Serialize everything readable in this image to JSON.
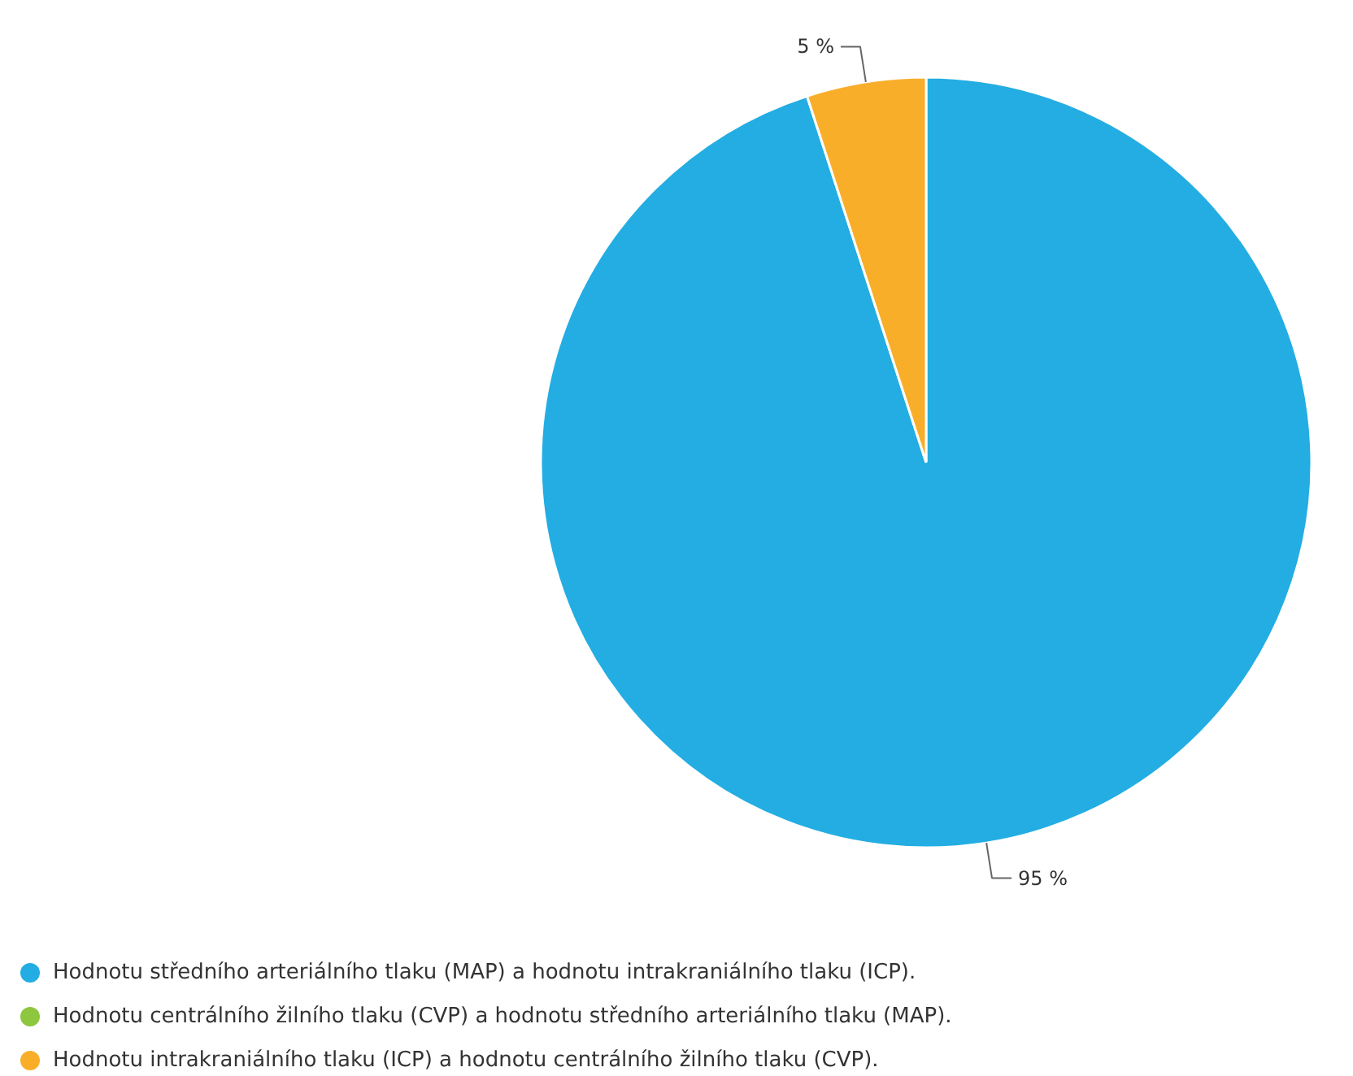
{
  "chart_data": {
    "type": "pie",
    "categories": [
      "Hodnotu středního arteriálního tlaku (MAP) a hodnotu intrakraniálního tlaku (ICP).",
      "Hodnotu centrálního žilního tlaku (CVP) a hodnotu středního arteriálního tlaku (MAP).",
      "Hodnotu intrakraniálního tlaku (ICP) a hodnotu centrálního žilního tlaku (CVP)."
    ],
    "values": [
      95,
      0,
      5
    ],
    "colors": [
      "#23ade2",
      "#8dc63f",
      "#f9ae2a"
    ],
    "value_labels": [
      "95 %",
      null,
      "5 %"
    ],
    "legend": "bottom"
  }
}
